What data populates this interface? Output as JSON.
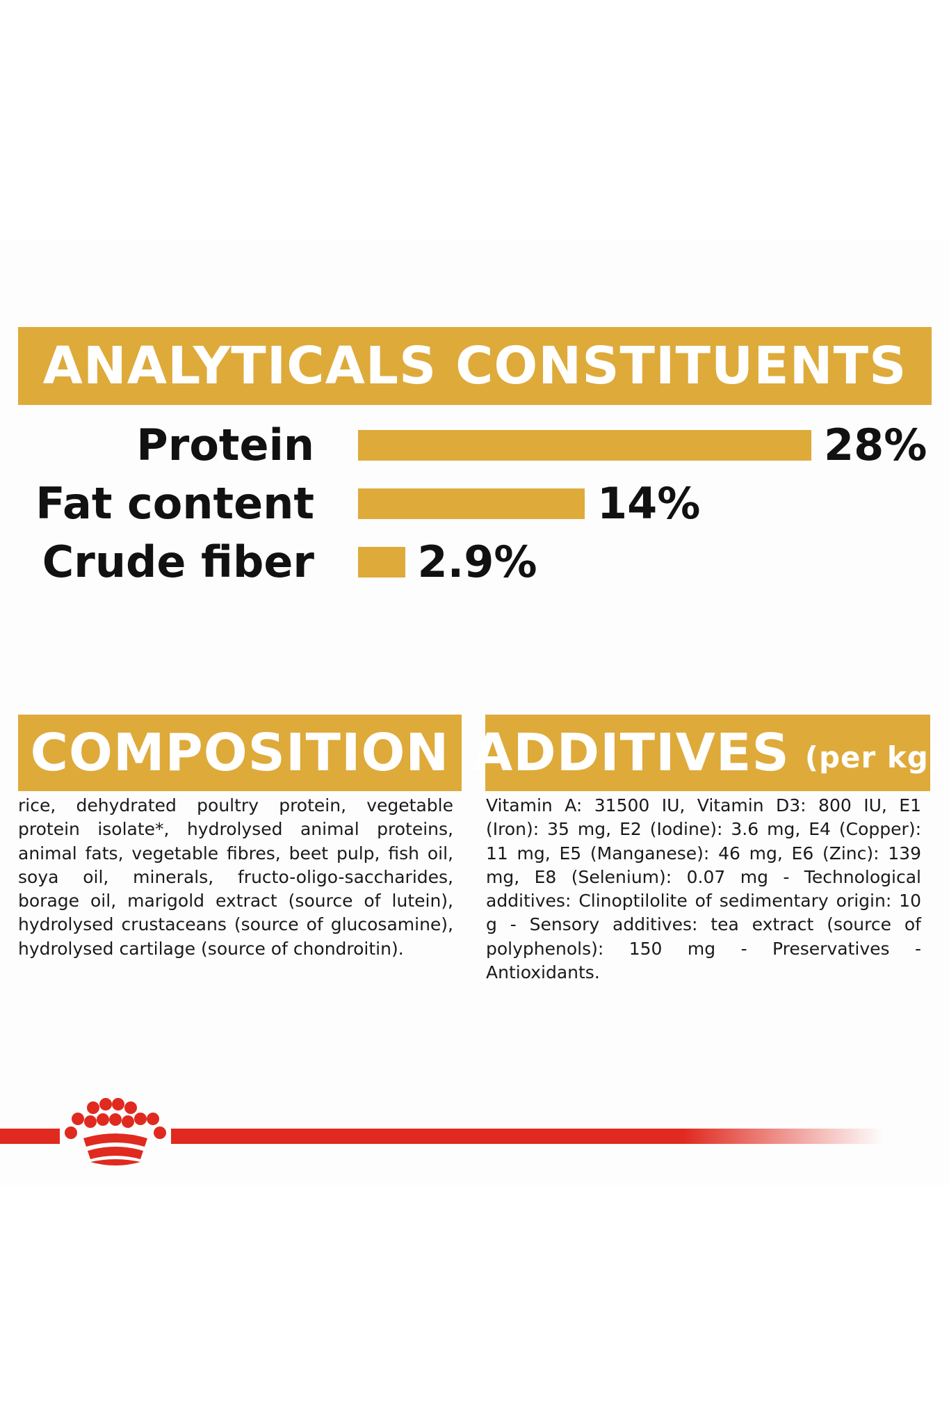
{
  "analytical": {
    "title": "ANALYTICALS CONSTITUENTS"
  },
  "chart_data": {
    "type": "bar",
    "orientation": "horizontal",
    "title": "ANALYTICALS CONSTITUENTS",
    "categories": [
      "Protein",
      "Fat content",
      "Crude fiber"
    ],
    "values": [
      28,
      14,
      2.9
    ],
    "value_labels": [
      "28%",
      "14%",
      "2.9%"
    ],
    "unit": "%",
    "bar_color": "#deaa3a",
    "xlim": [
      0,
      28
    ],
    "grid": false
  },
  "composition": {
    "title": "COMPOSITION",
    "text": "rice, dehydrated poultry protein, vegetable protein isolate*, hydrolysed animal proteins, animal fats, vegetable fibres, beet pulp, fish oil, soya oil, minerals, fructo-oligo-saccharides, borage oil, marigold extract (source of lutein), hydrolysed crustaceans (source of glucosamine), hydrolysed cartilage (source of chondroitin)."
  },
  "additives": {
    "title": "ADDITIVES",
    "unit": "(per kg)",
    "text": "Vitamin A: 31500 IU, Vitamin D3: 800 IU, E1 (Iron): 35 mg, E2 (Iodine): 3.6 mg, E4 (Copper): 11 mg, E5 (Manganese): 46 mg, E6 (Zinc): 139 mg, E8 (Selenium): 0.07 mg - Technological additives: Clinoptilolite of sedimentary origin: 10 g - Sensory additives: tea extract (source of polyphenols): 150 mg - Preservatives - Antioxidants."
  },
  "brand": {
    "logo_icon": "crown-icon",
    "accent_color": "#e02a1f"
  }
}
